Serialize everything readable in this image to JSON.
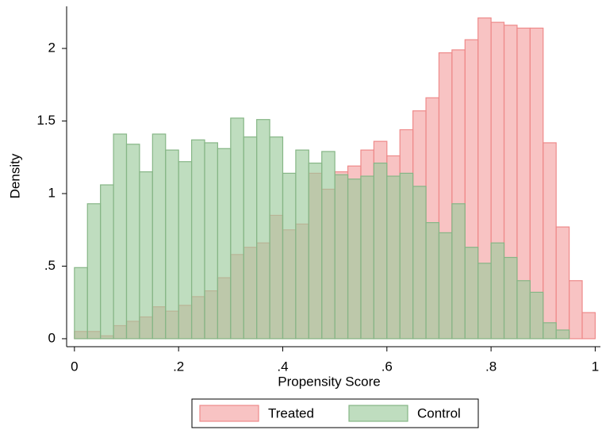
{
  "chart_data": {
    "type": "histogram",
    "xlabel": "Propensity Score",
    "ylabel": "Density",
    "bins": [
      0,
      0.025,
      0.05,
      0.075,
      0.1,
      0.125,
      0.15,
      0.175,
      0.2,
      0.225,
      0.25,
      0.275,
      0.3,
      0.325,
      0.35,
      0.375,
      0.4,
      0.425,
      0.45,
      0.475,
      0.5,
      0.525,
      0.55,
      0.575,
      0.6,
      0.625,
      0.65,
      0.675,
      0.7,
      0.725,
      0.75,
      0.775,
      0.8,
      0.825,
      0.85,
      0.875,
      0.9,
      0.925,
      0.95,
      0.975,
      1.0
    ],
    "series": [
      {
        "name": "Treated",
        "color": "#f4a3a3",
        "edge": "#ee8a8a",
        "values": [
          0.05,
          0.05,
          0.02,
          0.09,
          0.12,
          0.15,
          0.22,
          0.19,
          0.23,
          0.29,
          0.33,
          0.42,
          0.58,
          0.63,
          0.66,
          0.85,
          0.75,
          0.79,
          1.14,
          1.03,
          1.15,
          1.19,
          1.3,
          1.36,
          1.26,
          1.44,
          1.57,
          1.66,
          1.97,
          1.99,
          2.06,
          2.21,
          2.18,
          2.16,
          2.14,
          2.14,
          1.35,
          0.77,
          0.4,
          0.18
        ]
      },
      {
        "name": "Control",
        "color": "#9ccb9c",
        "edge": "#86b686",
        "values": [
          0.49,
          0.93,
          1.06,
          1.41,
          1.34,
          1.15,
          1.41,
          1.3,
          1.22,
          1.37,
          1.35,
          1.31,
          1.52,
          1.39,
          1.51,
          1.39,
          1.14,
          1.3,
          1.21,
          1.29,
          1.13,
          1.1,
          1.12,
          1.21,
          1.12,
          1.14,
          1.05,
          0.8,
          0.73,
          0.93,
          0.63,
          0.52,
          0.66,
          0.56,
          0.4,
          0.32,
          0.11,
          0.06,
          0,
          0
        ]
      }
    ],
    "xlim": [
      -0.015,
      1.01
    ],
    "ylim": [
      -0.055,
      2.29
    ],
    "xticks": [
      0,
      {
        "value": 0.2,
        "label": ".2"
      },
      {
        "value": 0.4,
        "label": ".4"
      },
      {
        "value": 0.6,
        "label": ".6"
      },
      {
        "value": 0.8,
        "label": ".8"
      },
      1
    ],
    "yticks": [
      0,
      {
        "value": 0.5,
        "label": ".5"
      },
      1,
      1.5,
      2
    ],
    "legend": "bottom"
  }
}
